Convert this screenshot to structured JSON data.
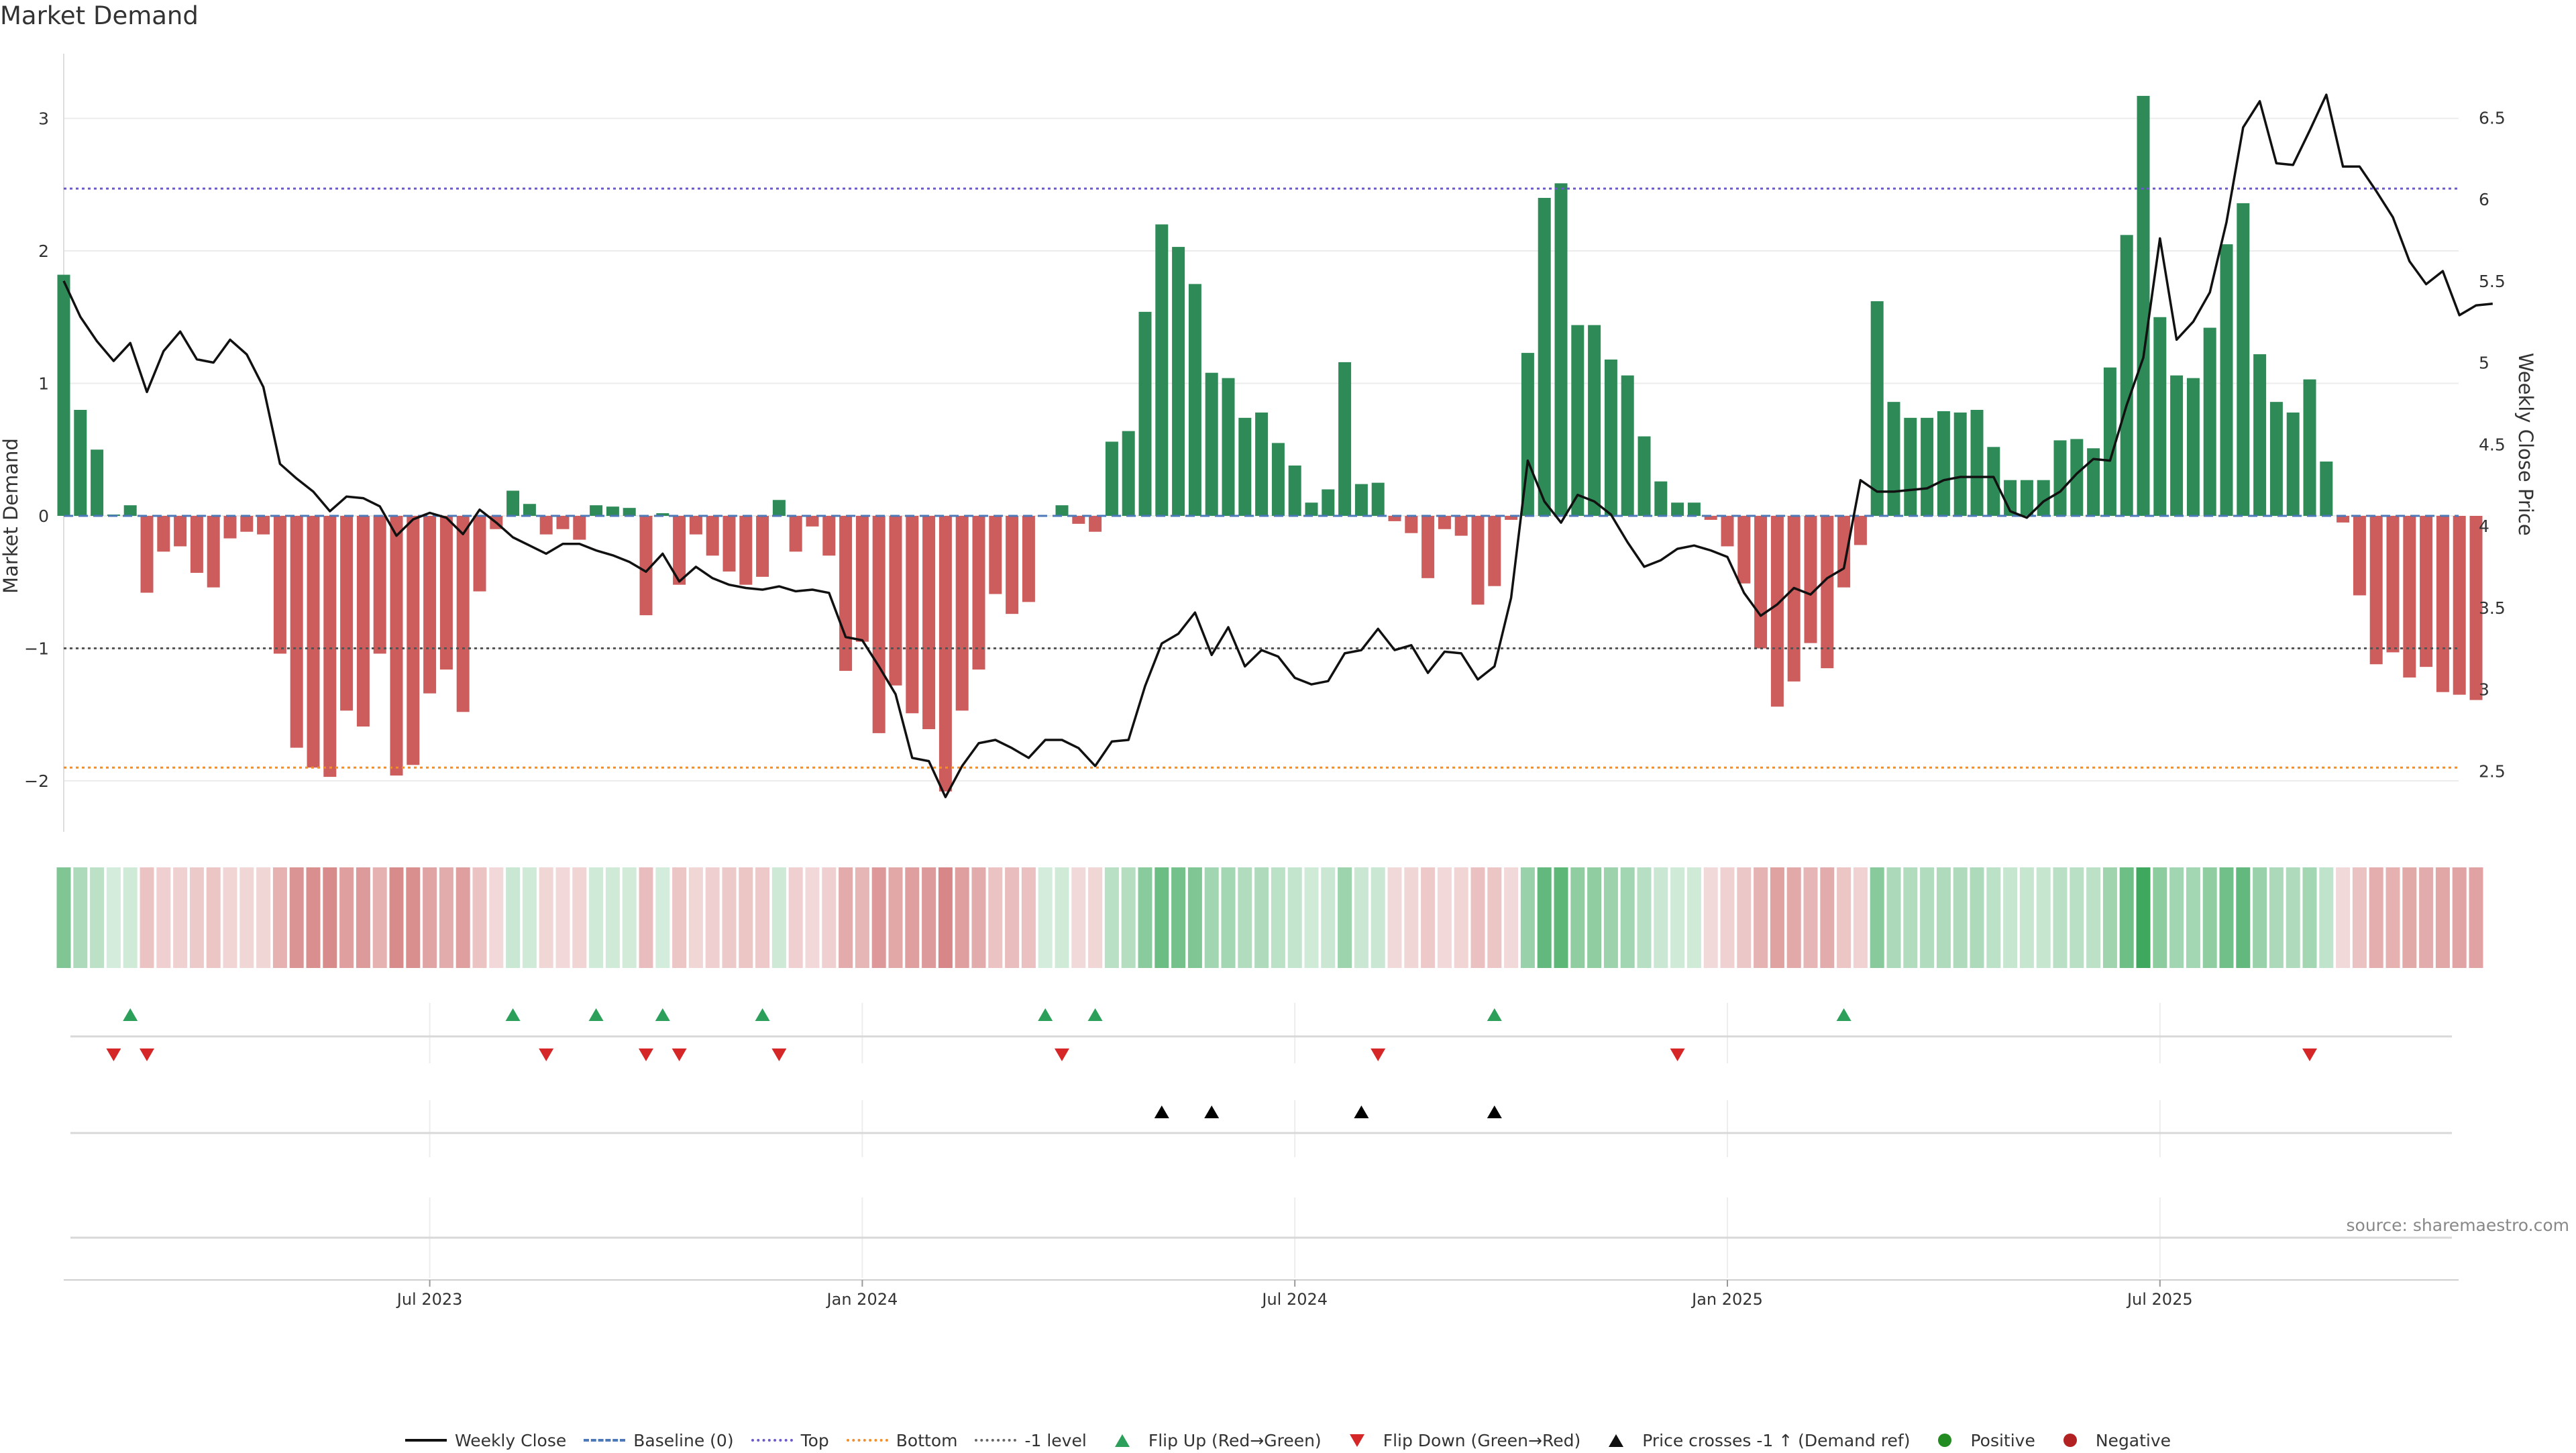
{
  "title": "Market Demand",
  "source": "source: sharemaestro.com",
  "chart_data": {
    "type": "bar",
    "title": "Market Demand",
    "ylabel_left": "Market Demand",
    "ylabel_right": "Weekly Close Price",
    "left_ylim": [
      -2.4,
      3.5
    ],
    "left_ticks": [
      "3",
      "2",
      "1",
      "0",
      "−1",
      "−2"
    ],
    "left_tick_values": [
      3,
      2,
      1,
      0,
      -1,
      -2
    ],
    "right_ylim": [
      2.2,
      6.9
    ],
    "right_ticks": [
      "6.5",
      "6",
      "5.5",
      "5",
      "4.5",
      "4",
      "3.5",
      "3",
      "2.5"
    ],
    "right_tick_values": [
      6.5,
      6,
      5.5,
      5,
      4.5,
      4,
      3.5,
      3,
      2.5
    ],
    "x_ticks": [
      "Jul 2023",
      "Jan 2024",
      "Jul 2024",
      "Jan 2025",
      "Jul 2025"
    ],
    "x_tick_weeks": [
      22,
      48,
      74,
      100,
      126
    ],
    "reference_lines": {
      "baseline": 0,
      "top": 2.47,
      "bottom": -1.9,
      "minus_one": -1
    },
    "demand": [
      1.82,
      0.8,
      0.5,
      0.01,
      0.08,
      -0.58,
      -0.27,
      -0.23,
      -0.43,
      -0.54,
      -0.17,
      -0.12,
      -0.14,
      -1.04,
      -1.75,
      -1.9,
      -1.97,
      -1.47,
      -1.59,
      -1.04,
      -1.96,
      -1.88,
      -1.34,
      -1.16,
      -1.48,
      -0.57,
      -0.1,
      0.19,
      0.09,
      -0.14,
      -0.1,
      -0.18,
      0.08,
      0.07,
      0.06,
      -0.75,
      0.02,
      -0.52,
      -0.14,
      -0.3,
      -0.42,
      -0.52,
      -0.46,
      0.12,
      -0.27,
      -0.08,
      -0.3,
      -1.17,
      -0.95,
      -1.64,
      -1.28,
      -1.49,
      -1.61,
      -2.08,
      -1.47,
      -1.16,
      -0.59,
      -0.74,
      -0.65,
      0,
      0.08,
      -0.06,
      -0.12,
      0.56,
      0.64,
      1.54,
      2.2,
      2.03,
      1.75,
      1.08,
      1.04,
      0.74,
      0.78,
      0.55,
      0.38,
      0.1,
      0.2,
      1.16,
      0.24,
      0.25,
      -0.04,
      -0.13,
      -0.47,
      -0.1,
      -0.15,
      -0.67,
      -0.53,
      -0.03,
      1.23,
      2.4,
      2.51,
      1.44,
      1.44,
      1.18,
      1.06,
      0.6,
      0.26,
      0.1,
      0.1,
      -0.03,
      -0.23,
      -0.51,
      -1.0,
      -1.44,
      -1.25,
      -0.96,
      -1.15,
      -0.54,
      -0.22,
      1.62,
      0.86,
      0.74,
      0.74,
      0.79,
      0.78,
      0.8,
      0.52,
      0.27,
      0.27,
      0.27,
      0.57,
      0.58,
      0.51,
      1.12,
      2.12,
      3.17,
      1.5,
      1.06,
      1.04,
      1.42,
      2.05,
      2.36,
      1.22,
      0.86,
      0.78,
      1.03,
      0.41,
      -0.05,
      -0.6,
      -1.12,
      -1.03,
      -1.22,
      -1.14,
      -1.33,
      -1.35,
      -1.39
    ],
    "price": [
      5.5,
      5.28,
      5.13,
      5.01,
      5.12,
      4.82,
      5.07,
      5.19,
      5.02,
      5,
      5.14,
      5.05,
      4.85,
      4.38,
      4.29,
      4.21,
      4.09,
      4.18,
      4.17,
      4.12,
      3.94,
      4.04,
      4.08,
      4.05,
      3.95,
      4.1,
      4.02,
      3.93,
      3.88,
      3.83,
      3.89,
      3.89,
      3.85,
      3.82,
      3.78,
      3.72,
      3.83,
      3.66,
      3.75,
      3.68,
      3.64,
      3.62,
      3.61,
      3.63,
      3.6,
      3.61,
      3.59,
      3.32,
      3.3,
      3.14,
      2.97,
      2.58,
      2.56,
      2.34,
      2.53,
      2.67,
      2.69,
      2.64,
      2.58,
      2.69,
      2.69,
      2.64,
      2.53,
      2.68,
      2.69,
      3.02,
      3.28,
      3.34,
      3.47,
      3.21,
      3.38,
      3.14,
      3.24,
      3.2,
      3.07,
      3.03,
      3.05,
      3.22,
      3.24,
      3.37,
      3.24,
      3.27,
      3.1,
      3.23,
      3.22,
      3.06,
      3.14,
      3.56,
      4.4,
      4.15,
      4.02,
      4.19,
      4.15,
      4.07,
      3.9,
      3.75,
      3.79,
      3.86,
      3.88,
      3.85,
      3.81,
      3.59,
      3.45,
      3.52,
      3.62,
      3.58,
      3.68,
      3.74,
      4.28,
      4.21,
      4.21,
      4.22,
      4.23,
      4.28,
      4.3,
      4.3,
      4.3,
      4.09,
      4.05,
      4.15,
      4.21,
      4.32,
      4.41,
      4.4,
      4.74,
      5.03,
      5.76,
      5.14,
      5.25,
      5.43,
      5.86,
      6.44,
      6.6,
      6.22,
      6.21,
      6.42,
      6.64,
      6.2,
      6.2,
      6.05,
      5.89,
      5.62,
      5.48,
      5.56,
      5.29,
      5.35,
      5.36
    ],
    "heat_strip": "demand intensity per week",
    "flip_up_weeks": [
      4,
      27,
      32,
      36,
      42,
      59,
      62,
      86,
      107
    ],
    "flip_down_weeks": [
      3,
      5,
      29,
      35,
      37,
      43,
      60,
      79,
      97,
      135
    ],
    "price_cross_weeks": [
      66,
      69,
      78,
      86
    ],
    "legend": [
      {
        "label": "Weekly Close",
        "kind": "line",
        "color": "#111111",
        "style": "solid"
      },
      {
        "label": "Baseline (0)",
        "kind": "line",
        "color": "#4e79b8",
        "style": "dashed"
      },
      {
        "label": "Top",
        "kind": "line",
        "color": "#6a5acd",
        "style": "dotted"
      },
      {
        "label": "Bottom",
        "kind": "line",
        "color": "#f28e2b",
        "style": "dotted"
      },
      {
        "label": "-1 level",
        "kind": "line",
        "color": "#666666",
        "style": "dotted"
      },
      {
        "label": "Flip Up (Red→Green)",
        "kind": "tri-up",
        "color": "#2ca05a"
      },
      {
        "label": "Flip Down (Green→Red)",
        "kind": "tri-down",
        "color": "#d62728"
      },
      {
        "label": "Price crosses -1 ↑ (Demand ref)",
        "kind": "tri-up",
        "color": "#111111"
      },
      {
        "label": "Positive",
        "kind": "dot",
        "color": "#228b22"
      },
      {
        "label": "Negative",
        "kind": "dot",
        "color": "#b22222"
      }
    ]
  },
  "colors": {
    "positive_bar": "#2e8b57",
    "negative_bar": "#cd5c5c",
    "price_line": "#111111",
    "top_line": "#6a5acd",
    "bottom_line": "#f28e2b",
    "minus_one_line": "#555555",
    "baseline_line": "#4e79b8",
    "flip_up": "#2ca05a",
    "flip_down": "#d62728",
    "cross": "#000000"
  }
}
